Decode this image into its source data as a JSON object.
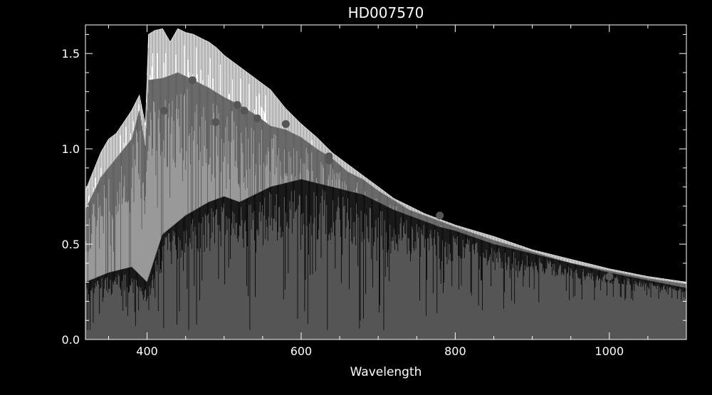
{
  "chart_data": {
    "type": "line",
    "title": "HD007570",
    "xlabel": "Wavelength",
    "ylabel": "",
    "xlim": [
      320,
      1100
    ],
    "ylim": [
      0.0,
      1.65
    ],
    "x_ticks": [
      400,
      600,
      800,
      1000
    ],
    "x_tick_labels": [
      "400",
      "600",
      "800",
      "1000"
    ],
    "y_ticks": [
      0.0,
      0.5,
      1.0,
      1.5
    ],
    "y_tick_labels": [
      "0.0",
      "0.5",
      "1.0",
      "1.5"
    ],
    "grid": false,
    "series": [
      {
        "color": "#ffffff",
        "x": [
          320,
          330,
          340,
          350,
          360,
          370,
          380,
          390,
          398,
          402,
          410,
          420,
          430,
          440,
          450,
          460,
          470,
          480,
          490,
          500,
          520,
          540,
          560,
          580,
          600,
          620,
          640,
          660,
          680,
          700,
          720,
          740,
          760,
          780,
          800,
          850,
          900,
          950,
          1000,
          1050,
          1100
        ],
        "y": [
          0.78,
          0.88,
          0.98,
          1.05,
          1.08,
          1.14,
          1.2,
          1.28,
          1.12,
          1.6,
          1.62,
          1.63,
          1.56,
          1.63,
          1.61,
          1.6,
          1.58,
          1.56,
          1.53,
          1.49,
          1.43,
          1.37,
          1.31,
          1.21,
          1.13,
          1.06,
          0.98,
          0.92,
          0.86,
          0.8,
          0.74,
          0.7,
          0.66,
          0.63,
          0.6,
          0.54,
          0.47,
          0.42,
          0.37,
          0.33,
          0.3
        ]
      },
      {
        "color": "#999999",
        "x": [
          320,
          340,
          360,
          380,
          390,
          398,
          402,
          420,
          440,
          460,
          480,
          500,
          520,
          540,
          560,
          580,
          600,
          620,
          640,
          660,
          680,
          700,
          720,
          740,
          760,
          780,
          800,
          850,
          900,
          950,
          1000,
          1050,
          1100
        ],
        "y": [
          0.68,
          0.85,
          0.95,
          1.05,
          1.2,
          1.0,
          1.36,
          1.37,
          1.4,
          1.36,
          1.32,
          1.27,
          1.23,
          1.18,
          1.12,
          1.1,
          1.06,
          1.0,
          0.95,
          0.88,
          0.84,
          0.78,
          0.73,
          0.68,
          0.65,
          0.62,
          0.59,
          0.52,
          0.46,
          0.4,
          0.36,
          0.32,
          0.29
        ]
      },
      {
        "color": "#555555",
        "x": [
          320,
          350,
          380,
          400,
          420,
          450,
          480,
          500,
          520,
          540,
          560,
          580,
          600,
          620,
          640,
          660,
          680,
          700,
          720,
          740,
          760,
          780,
          800,
          850,
          900,
          950,
          1000,
          1050,
          1100
        ],
        "y": [
          0.3,
          0.35,
          0.38,
          0.3,
          0.55,
          0.65,
          0.72,
          0.75,
          0.72,
          0.76,
          0.8,
          0.82,
          0.84,
          0.82,
          0.8,
          0.78,
          0.76,
          0.72,
          0.68,
          0.65,
          0.62,
          0.59,
          0.57,
          0.5,
          0.45,
          0.4,
          0.35,
          0.31,
          0.27
        ]
      }
    ],
    "photometry": {
      "color": "#555555",
      "x": [
        422,
        459,
        489,
        517,
        526,
        543,
        580,
        636,
        636,
        780,
        1000
      ],
      "y": [
        1.2,
        1.36,
        1.14,
        1.23,
        1.2,
        1.16,
        1.13,
        0.96,
        0.94,
        0.65,
        0.33
      ]
    }
  }
}
